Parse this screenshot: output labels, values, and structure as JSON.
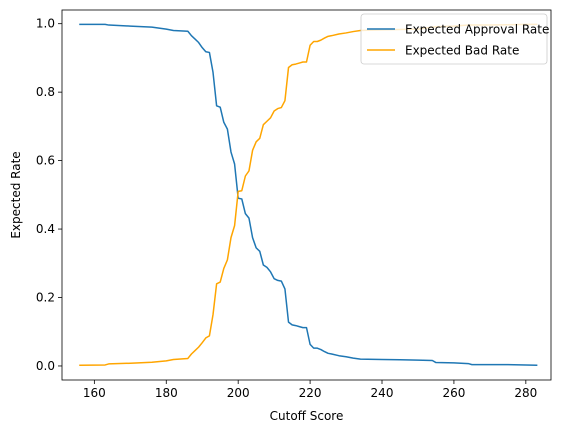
{
  "chart_data": {
    "type": "line",
    "title": "",
    "xlabel": "Cutoff Score",
    "ylabel": "Expected Rate",
    "xlim": [
      151,
      287
    ],
    "ylim": [
      -0.041,
      1.04
    ],
    "xticks": [
      160,
      180,
      200,
      220,
      240,
      260,
      280
    ],
    "yticks": [
      0.0,
      0.2,
      0.4,
      0.6,
      0.8,
      1.0
    ],
    "xtick_labels": [
      "160",
      "180",
      "200",
      "220",
      "240",
      "260",
      "280"
    ],
    "ytick_labels": [
      "0.0",
      "0.2",
      "0.4",
      "0.6",
      "0.8",
      "1.0"
    ],
    "grid": false,
    "legend_position": "top-right",
    "series": [
      {
        "name": "Expected Approval Rate",
        "color": "#1f77b4",
        "x": [
          156,
          163,
          164,
          170,
          176,
          178,
          180,
          182,
          186,
          187,
          188,
          189,
          190,
          191,
          192,
          193,
          194,
          195,
          196,
          197,
          198,
          199,
          200,
          201,
          202,
          203,
          204,
          205,
          206,
          207,
          208,
          209,
          210,
          211,
          212,
          213,
          214,
          215,
          216,
          217,
          218,
          219,
          220,
          221,
          222,
          223,
          224,
          225,
          226,
          228,
          230,
          232,
          234,
          240,
          245,
          250,
          254,
          255,
          260,
          264,
          265,
          270,
          275,
          280,
          283
        ],
        "y": [
          0.998,
          0.998,
          0.996,
          0.993,
          0.99,
          0.987,
          0.984,
          0.98,
          0.978,
          0.965,
          0.955,
          0.945,
          0.93,
          0.918,
          0.916,
          0.858,
          0.76,
          0.756,
          0.712,
          0.692,
          0.625,
          0.59,
          0.49,
          0.488,
          0.445,
          0.432,
          0.375,
          0.345,
          0.335,
          0.295,
          0.288,
          0.275,
          0.255,
          0.25,
          0.248,
          0.225,
          0.128,
          0.12,
          0.118,
          0.115,
          0.112,
          0.112,
          0.063,
          0.052,
          0.052,
          0.048,
          0.042,
          0.037,
          0.035,
          0.03,
          0.027,
          0.023,
          0.02,
          0.019,
          0.018,
          0.017,
          0.016,
          0.01,
          0.009,
          0.007,
          0.004,
          0.004,
          0.004,
          0.003,
          0.002
        ]
      },
      {
        "name": "Expected Bad Rate",
        "color": "#ffa500",
        "x": [
          156,
          163,
          164,
          170,
          176,
          180,
          182,
          186,
          187,
          188,
          189,
          190,
          191,
          192,
          193,
          194,
          195,
          196,
          197,
          198,
          199,
          200,
          201,
          202,
          203,
          204,
          205,
          206,
          207,
          208,
          209,
          210,
          211,
          212,
          213,
          214,
          215,
          216,
          217,
          218,
          219,
          220,
          221,
          222,
          223,
          224,
          225,
          226,
          228,
          230,
          232,
          234,
          236,
          240,
          245,
          250,
          254,
          255,
          260,
          264,
          265,
          270,
          275,
          280,
          283
        ],
        "y": [
          0.002,
          0.003,
          0.006,
          0.008,
          0.011,
          0.015,
          0.019,
          0.022,
          0.035,
          0.045,
          0.055,
          0.068,
          0.082,
          0.088,
          0.15,
          0.24,
          0.245,
          0.285,
          0.31,
          0.375,
          0.41,
          0.51,
          0.512,
          0.555,
          0.57,
          0.63,
          0.655,
          0.665,
          0.705,
          0.715,
          0.725,
          0.745,
          0.752,
          0.755,
          0.775,
          0.872,
          0.88,
          0.882,
          0.885,
          0.888,
          0.888,
          0.937,
          0.948,
          0.948,
          0.952,
          0.958,
          0.963,
          0.965,
          0.97,
          0.973,
          0.977,
          0.98,
          0.981,
          0.982,
          0.983,
          0.984,
          0.99,
          0.991,
          0.993,
          0.996,
          0.996,
          0.996,
          0.997,
          0.998,
          0.998
        ]
      }
    ]
  }
}
